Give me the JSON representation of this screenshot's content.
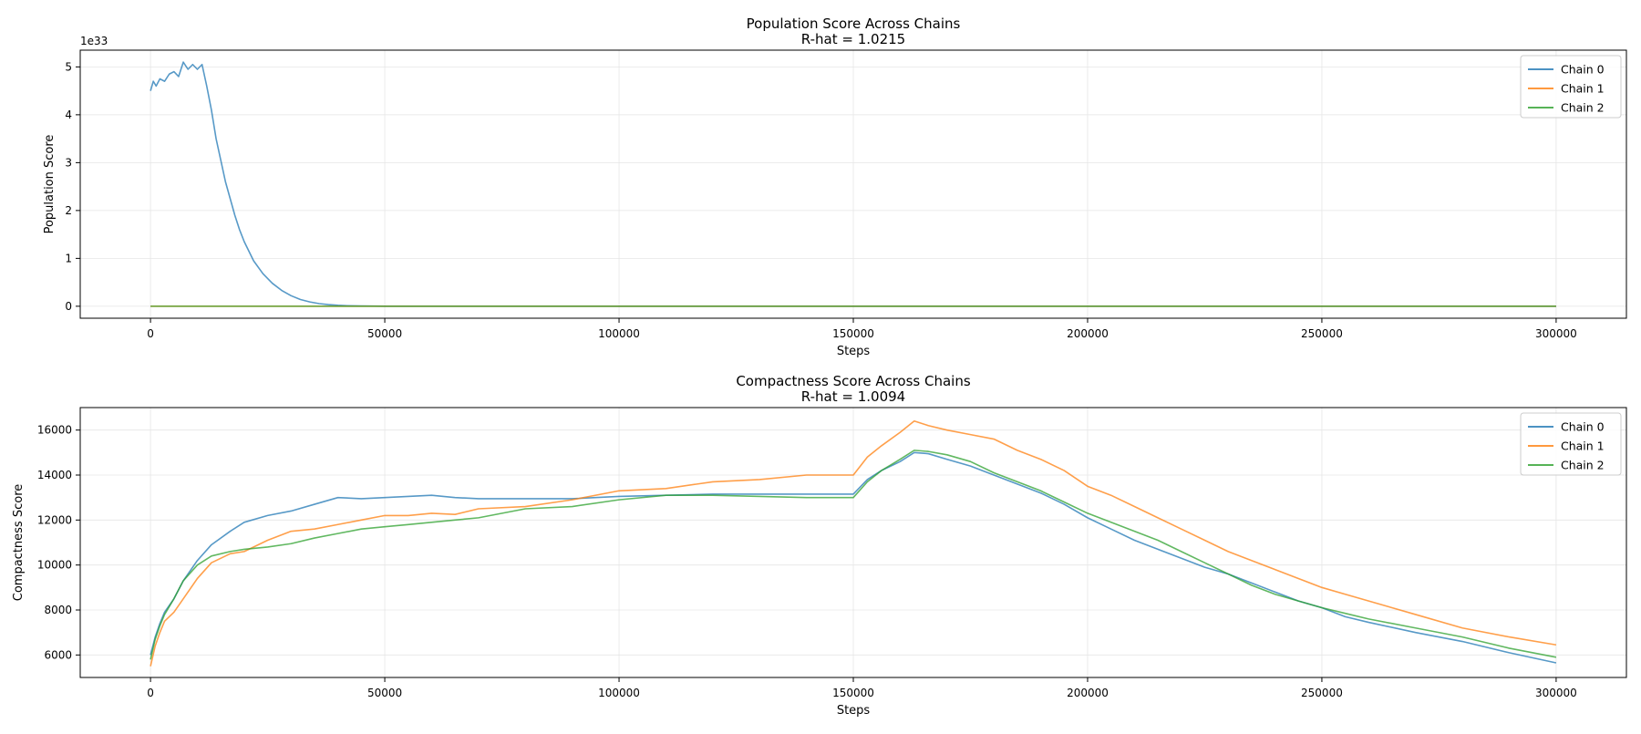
{
  "colors": {
    "chain0": "#1f77b4",
    "chain1": "#ff7f0e",
    "chain2": "#2ca02c",
    "grid": "#e6e6e6",
    "axes": "#000000"
  },
  "chart_data": [
    {
      "type": "line",
      "title": "Population Score Across Chains",
      "subtitle": "R-hat = 1.0215",
      "xlabel": "Steps",
      "ylabel": "Population Score",
      "offset_label": "1e33",
      "xlim": [
        -15000,
        315000
      ],
      "ylim": [
        -0.25,
        5.35
      ],
      "xticks": [
        0,
        50000,
        100000,
        150000,
        200000,
        250000,
        300000
      ],
      "xtick_labels": [
        "0",
        "50000",
        "100000",
        "150000",
        "200000",
        "250000",
        "300000"
      ],
      "yticks": [
        0,
        1,
        2,
        3,
        4,
        5
      ],
      "ytick_labels": [
        "0",
        "1",
        "2",
        "3",
        "4",
        "5"
      ],
      "grid": true,
      "legend": "top-right",
      "legend_entries": [
        "Chain 0",
        "Chain 1",
        "Chain 2"
      ],
      "series": [
        {
          "name": "Chain 0",
          "color": "#1f77b4",
          "x": [
            0,
            600,
            1200,
            2000,
            3000,
            4000,
            5000,
            6000,
            7000,
            8000,
            9000,
            10000,
            11000,
            12000,
            13000,
            14000,
            15000,
            16000,
            17000,
            18000,
            19000,
            20000,
            22000,
            24000,
            26000,
            28000,
            30000,
            32000,
            34000,
            36000,
            38000,
            40000,
            42000,
            45000,
            50000,
            60000,
            100000,
            150000,
            200000,
            250000,
            300000
          ],
          "y": [
            4.5,
            4.7,
            4.6,
            4.75,
            4.7,
            4.85,
            4.9,
            4.8,
            5.1,
            4.95,
            5.05,
            4.95,
            5.05,
            4.6,
            4.1,
            3.5,
            3.05,
            2.6,
            2.25,
            1.9,
            1.6,
            1.35,
            0.95,
            0.68,
            0.48,
            0.33,
            0.22,
            0.14,
            0.09,
            0.055,
            0.035,
            0.02,
            0.012,
            0.006,
            0.002,
            0.0,
            0.0,
            0.0,
            0.0,
            0.0,
            0.0
          ]
        },
        {
          "name": "Chain 1",
          "color": "#ff7f0e",
          "x": [
            0,
            300000
          ],
          "y": [
            0.0,
            0.0
          ]
        },
        {
          "name": "Chain 2",
          "color": "#2ca02c",
          "x": [
            0,
            300000
          ],
          "y": [
            0.0,
            0.0
          ]
        }
      ]
    },
    {
      "type": "line",
      "title": "Compactness Score Across Chains",
      "subtitle": "R-hat = 1.0094",
      "xlabel": "Steps",
      "ylabel": "Compactness Score",
      "xlim": [
        -15000,
        315000
      ],
      "ylim": [
        5000,
        17000
      ],
      "xticks": [
        0,
        50000,
        100000,
        150000,
        200000,
        250000,
        300000
      ],
      "xtick_labels": [
        "0",
        "50000",
        "100000",
        "150000",
        "200000",
        "250000",
        "300000"
      ],
      "yticks": [
        6000,
        8000,
        10000,
        12000,
        14000,
        16000
      ],
      "ytick_labels": [
        "6000",
        "8000",
        "10000",
        "12000",
        "14000",
        "16000"
      ],
      "grid": true,
      "legend": "top-right",
      "legend_entries": [
        "Chain 0",
        "Chain 1",
        "Chain 2"
      ],
      "series": [
        {
          "name": "Chain 0",
          "color": "#1f77b4",
          "x": [
            0,
            1000,
            2000,
            3000,
            5000,
            7000,
            10000,
            13000,
            17000,
            20000,
            25000,
            30000,
            35000,
            40000,
            45000,
            50000,
            55000,
            60000,
            65000,
            70000,
            80000,
            90000,
            100000,
            110000,
            120000,
            130000,
            140000,
            150000,
            153000,
            156000,
            160000,
            163000,
            166000,
            170000,
            175000,
            180000,
            185000,
            190000,
            195000,
            200000,
            205000,
            210000,
            215000,
            220000,
            225000,
            230000,
            235000,
            240000,
            245000,
            250000,
            255000,
            260000,
            270000,
            280000,
            290000,
            300000
          ],
          "y": [
            6000,
            6800,
            7400,
            7900,
            8500,
            9300,
            10200,
            10900,
            11500,
            11900,
            12200,
            12400,
            12700,
            13000,
            12950,
            13000,
            13050,
            13100,
            13000,
            12950,
            12950,
            12950,
            13050,
            13100,
            13150,
            13150,
            13150,
            13150,
            13800,
            14200,
            14600,
            15000,
            14950,
            14700,
            14400,
            14000,
            13600,
            13200,
            12700,
            12100,
            11600,
            11100,
            10700,
            10300,
            9900,
            9600,
            9200,
            8800,
            8400,
            8100,
            7700,
            7450,
            7000,
            6600,
            6100,
            5650
          ]
        },
        {
          "name": "Chain 1",
          "color": "#ff7f0e",
          "x": [
            0,
            1000,
            2000,
            3000,
            5000,
            7000,
            10000,
            13000,
            17000,
            20000,
            25000,
            30000,
            35000,
            40000,
            45000,
            50000,
            55000,
            60000,
            65000,
            70000,
            80000,
            90000,
            100000,
            110000,
            120000,
            130000,
            140000,
            150000,
            153000,
            156000,
            160000,
            163000,
            166000,
            170000,
            175000,
            180000,
            185000,
            190000,
            195000,
            200000,
            205000,
            210000,
            215000,
            220000,
            225000,
            230000,
            235000,
            240000,
            245000,
            250000,
            255000,
            260000,
            270000,
            280000,
            290000,
            300000
          ],
          "y": [
            5500,
            6400,
            7000,
            7500,
            7900,
            8500,
            9400,
            10100,
            10500,
            10600,
            11100,
            11500,
            11600,
            11800,
            12000,
            12200,
            12200,
            12300,
            12250,
            12500,
            12600,
            12900,
            13300,
            13400,
            13700,
            13800,
            14000,
            14000,
            14800,
            15300,
            15900,
            16400,
            16200,
            16000,
            15800,
            15600,
            15100,
            14700,
            14200,
            13500,
            13100,
            12600,
            12100,
            11600,
            11100,
            10600,
            10200,
            9800,
            9400,
            9000,
            8700,
            8400,
            7800,
            7200,
            6800,
            6450
          ]
        },
        {
          "name": "Chain 2",
          "color": "#2ca02c",
          "x": [
            0,
            1000,
            2000,
            3000,
            5000,
            7000,
            10000,
            13000,
            17000,
            20000,
            25000,
            30000,
            35000,
            40000,
            45000,
            50000,
            55000,
            60000,
            65000,
            70000,
            80000,
            90000,
            100000,
            110000,
            120000,
            130000,
            140000,
            150000,
            153000,
            156000,
            160000,
            163000,
            166000,
            170000,
            175000,
            180000,
            185000,
            190000,
            195000,
            200000,
            205000,
            210000,
            215000,
            220000,
            225000,
            230000,
            235000,
            240000,
            245000,
            250000,
            255000,
            260000,
            270000,
            280000,
            290000,
            300000
          ],
          "y": [
            5800,
            6700,
            7300,
            7800,
            8500,
            9300,
            10000,
            10400,
            10600,
            10700,
            10800,
            10950,
            11200,
            11400,
            11600,
            11700,
            11800,
            11900,
            12000,
            12100,
            12500,
            12600,
            12900,
            13100,
            13100,
            13050,
            13000,
            13000,
            13700,
            14200,
            14700,
            15100,
            15050,
            14900,
            14600,
            14100,
            13700,
            13300,
            12800,
            12300,
            11900,
            11500,
            11100,
            10600,
            10100,
            9600,
            9100,
            8700,
            8400,
            8100,
            7850,
            7600,
            7200,
            6800,
            6300,
            5900
          ]
        }
      ]
    }
  ]
}
